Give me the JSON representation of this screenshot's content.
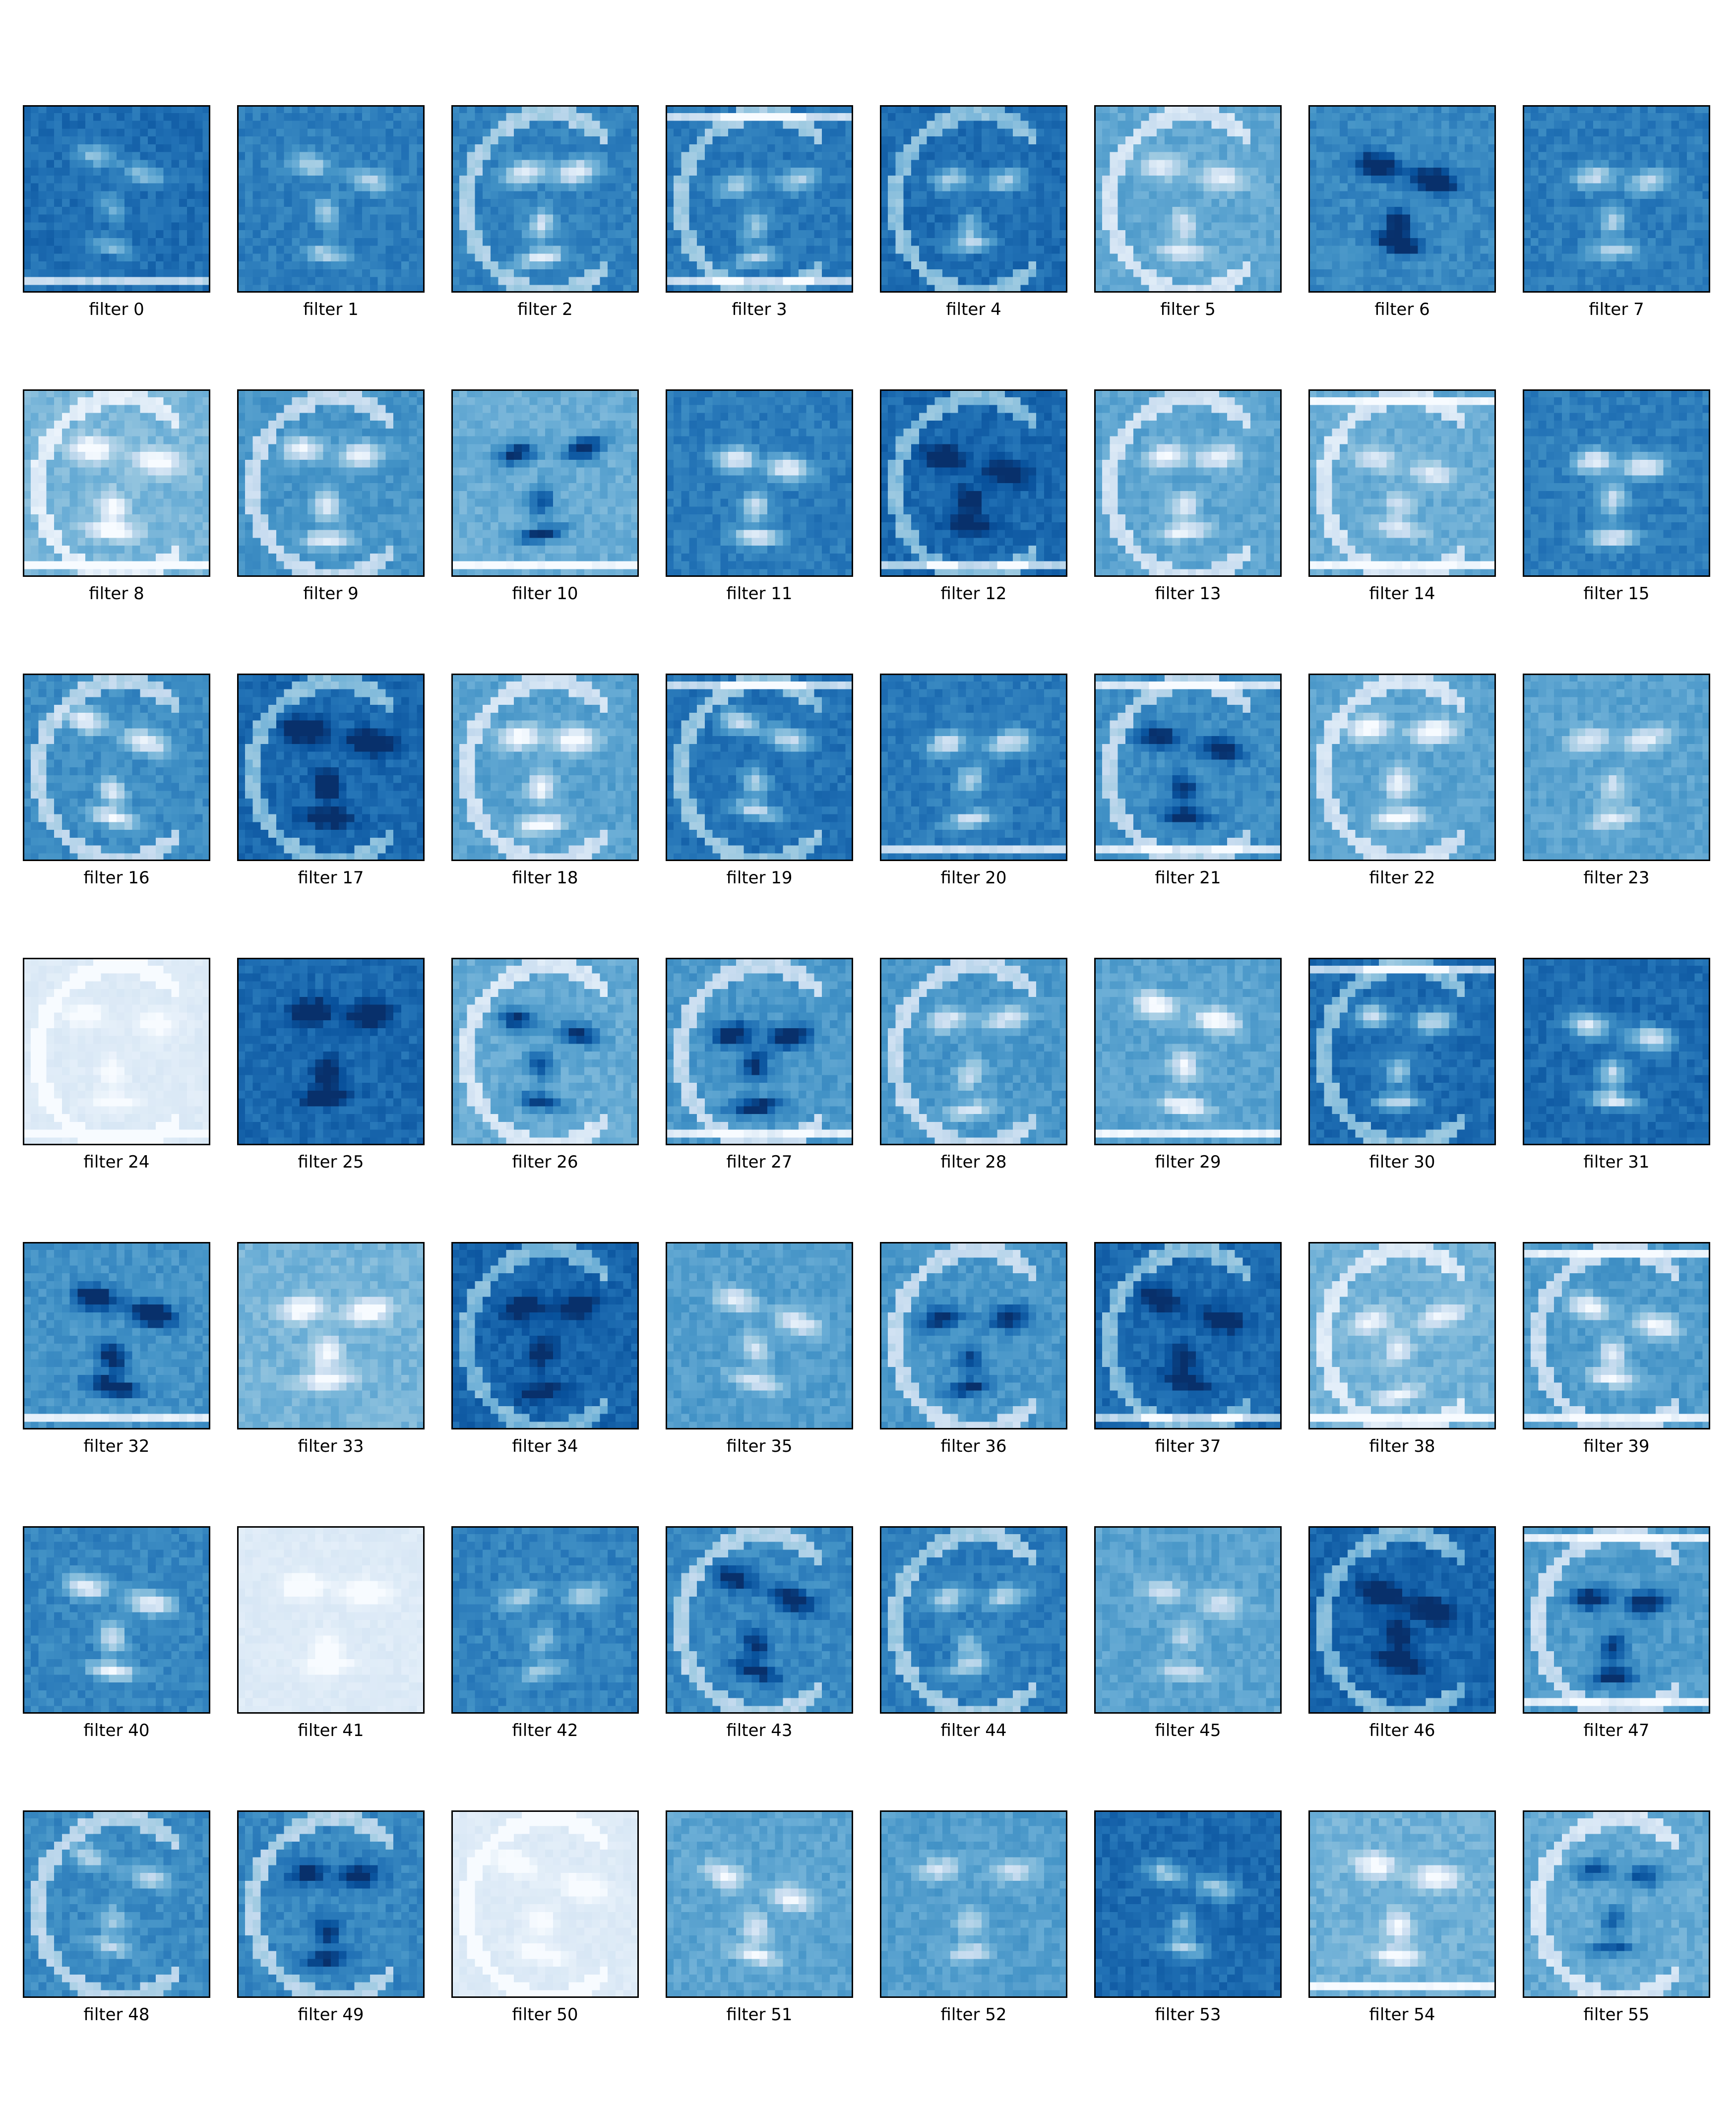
{
  "chart_data": {
    "type": "heatmap",
    "colormap": "Blues",
    "grid": "8 columns x 7 rows",
    "axes_ticks": false,
    "label_prefix": "filter",
    "panels": [
      {
        "label": "filter 0"
      },
      {
        "label": "filter 1"
      },
      {
        "label": "filter 2"
      },
      {
        "label": "filter 3"
      },
      {
        "label": "filter 4"
      },
      {
        "label": "filter 5"
      },
      {
        "label": "filter 6"
      },
      {
        "label": "filter 7"
      },
      {
        "label": "filter 8"
      },
      {
        "label": "filter 9"
      },
      {
        "label": "filter 10"
      },
      {
        "label": "filter 11"
      },
      {
        "label": "filter 12"
      },
      {
        "label": "filter 13"
      },
      {
        "label": "filter 14"
      },
      {
        "label": "filter 15"
      },
      {
        "label": "filter 16"
      },
      {
        "label": "filter 17"
      },
      {
        "label": "filter 18"
      },
      {
        "label": "filter 19"
      },
      {
        "label": "filter 20"
      },
      {
        "label": "filter 21"
      },
      {
        "label": "filter 22"
      },
      {
        "label": "filter 23"
      },
      {
        "label": "filter 24"
      },
      {
        "label": "filter 25"
      },
      {
        "label": "filter 26"
      },
      {
        "label": "filter 27"
      },
      {
        "label": "filter 28"
      },
      {
        "label": "filter 29"
      },
      {
        "label": "filter 30"
      },
      {
        "label": "filter 31"
      },
      {
        "label": "filter 32"
      },
      {
        "label": "filter 33"
      },
      {
        "label": "filter 34"
      },
      {
        "label": "filter 35"
      },
      {
        "label": "filter 36"
      },
      {
        "label": "filter 37"
      },
      {
        "label": "filter 38"
      },
      {
        "label": "filter 39"
      },
      {
        "label": "filter 40"
      },
      {
        "label": "filter 41"
      },
      {
        "label": "filter 42"
      },
      {
        "label": "filter 43"
      },
      {
        "label": "filter 44"
      },
      {
        "label": "filter 45"
      },
      {
        "label": "filter 46"
      },
      {
        "label": "filter 47"
      },
      {
        "label": "filter 48"
      },
      {
        "label": "filter 49"
      },
      {
        "label": "filter 50"
      },
      {
        "label": "filter 51"
      },
      {
        "label": "filter 52"
      },
      {
        "label": "filter 53"
      },
      {
        "label": "filter 54"
      },
      {
        "label": "filter 55"
      }
    ]
  }
}
